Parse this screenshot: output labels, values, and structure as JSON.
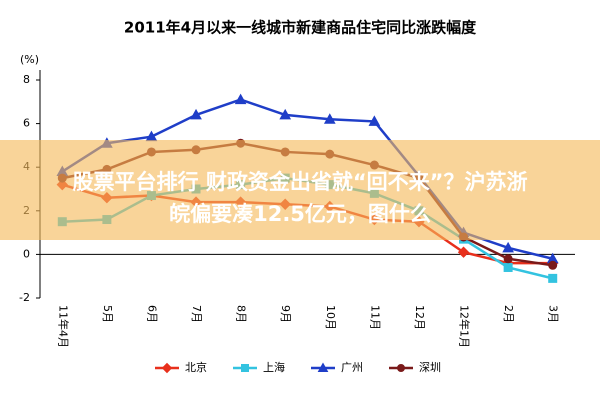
{
  "chart_data": {
    "type": "line",
    "title": "2011年4月以来一线城市新建商品住宅同比涨跌幅度",
    "y_label": "(%)",
    "categories": [
      "11年4月",
      "5月",
      "6月",
      "7月",
      "8月",
      "9月",
      "10月",
      "11月",
      "12月",
      "12年1月",
      "2月",
      "3月"
    ],
    "series": [
      {
        "name": "北京",
        "color": "#e8301c",
        "marker": "diamond",
        "values": [
          3.2,
          2.6,
          2.7,
          2.4,
          2.4,
          2.3,
          2.2,
          1.6,
          1.5,
          0.1,
          -0.4,
          -0.4
        ]
      },
      {
        "name": "上海",
        "color": "#33c3e0",
        "marker": "square",
        "values": [
          1.5,
          1.6,
          2.7,
          3.0,
          3.2,
          3.5,
          3.2,
          2.8,
          2.0,
          0.7,
          -0.6,
          -1.1
        ]
      },
      {
        "name": "广州",
        "color": "#1f3ec8",
        "marker": "triangle",
        "values": [
          3.8,
          5.1,
          5.4,
          6.4,
          7.1,
          6.4,
          6.2,
          6.1,
          3.6,
          1.0,
          0.3,
          -0.2
        ]
      },
      {
        "name": "深圳",
        "color": "#7a1a1a",
        "marker": "circle",
        "values": [
          3.5,
          3.9,
          4.7,
          4.8,
          5.1,
          4.7,
          4.6,
          4.1,
          3.5,
          0.8,
          -0.2,
          -0.5
        ]
      }
    ],
    "ylim": [
      -2,
      8
    ],
    "yticks": [
      -2,
      0,
      2,
      4,
      6,
      8
    ],
    "legend": "bottom"
  },
  "banner": {
    "lines": [
      "股票平台排行 财政资金出省就“回不来”？沪苏浙",
      "皖偏要凑12.5亿元，图什么"
    ]
  }
}
